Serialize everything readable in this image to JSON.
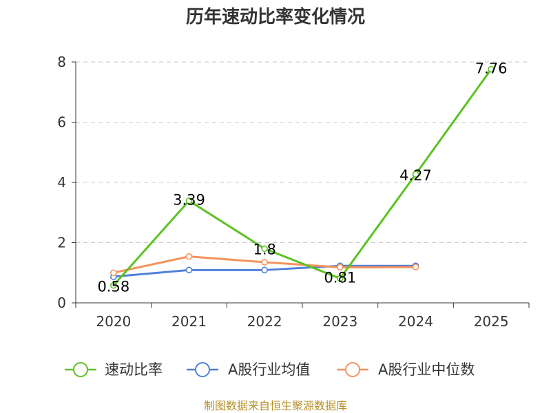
{
  "chart_data": {
    "type": "line",
    "title": "历年速动比率变化情况",
    "categories": [
      "2020",
      "2021",
      "2022",
      "2023",
      "2024",
      "2025"
    ],
    "y_ticks": [
      "0",
      "2",
      "4",
      "6",
      "8"
    ],
    "ylim": [
      0,
      8
    ],
    "grid": true,
    "legend_position": "bottom",
    "series": [
      {
        "name": "速动比率",
        "color": "#5cc222",
        "values": [
          0.58,
          3.39,
          1.8,
          0.81,
          4.27,
          7.76
        ],
        "labels": [
          "0.58",
          "3.39",
          "1.8",
          "0.81",
          "4.27",
          "7.76"
        ]
      },
      {
        "name": "A股行业均值",
        "color": "#4f7fd8",
        "values": [
          0.87,
          1.09,
          1.09,
          1.23,
          1.23,
          null
        ]
      },
      {
        "name": "A股行业中位数",
        "color": "#f5925c",
        "values": [
          1.0,
          1.54,
          1.35,
          1.18,
          1.19,
          null
        ]
      }
    ],
    "source": "制图数据来自恒生聚源数据库"
  }
}
